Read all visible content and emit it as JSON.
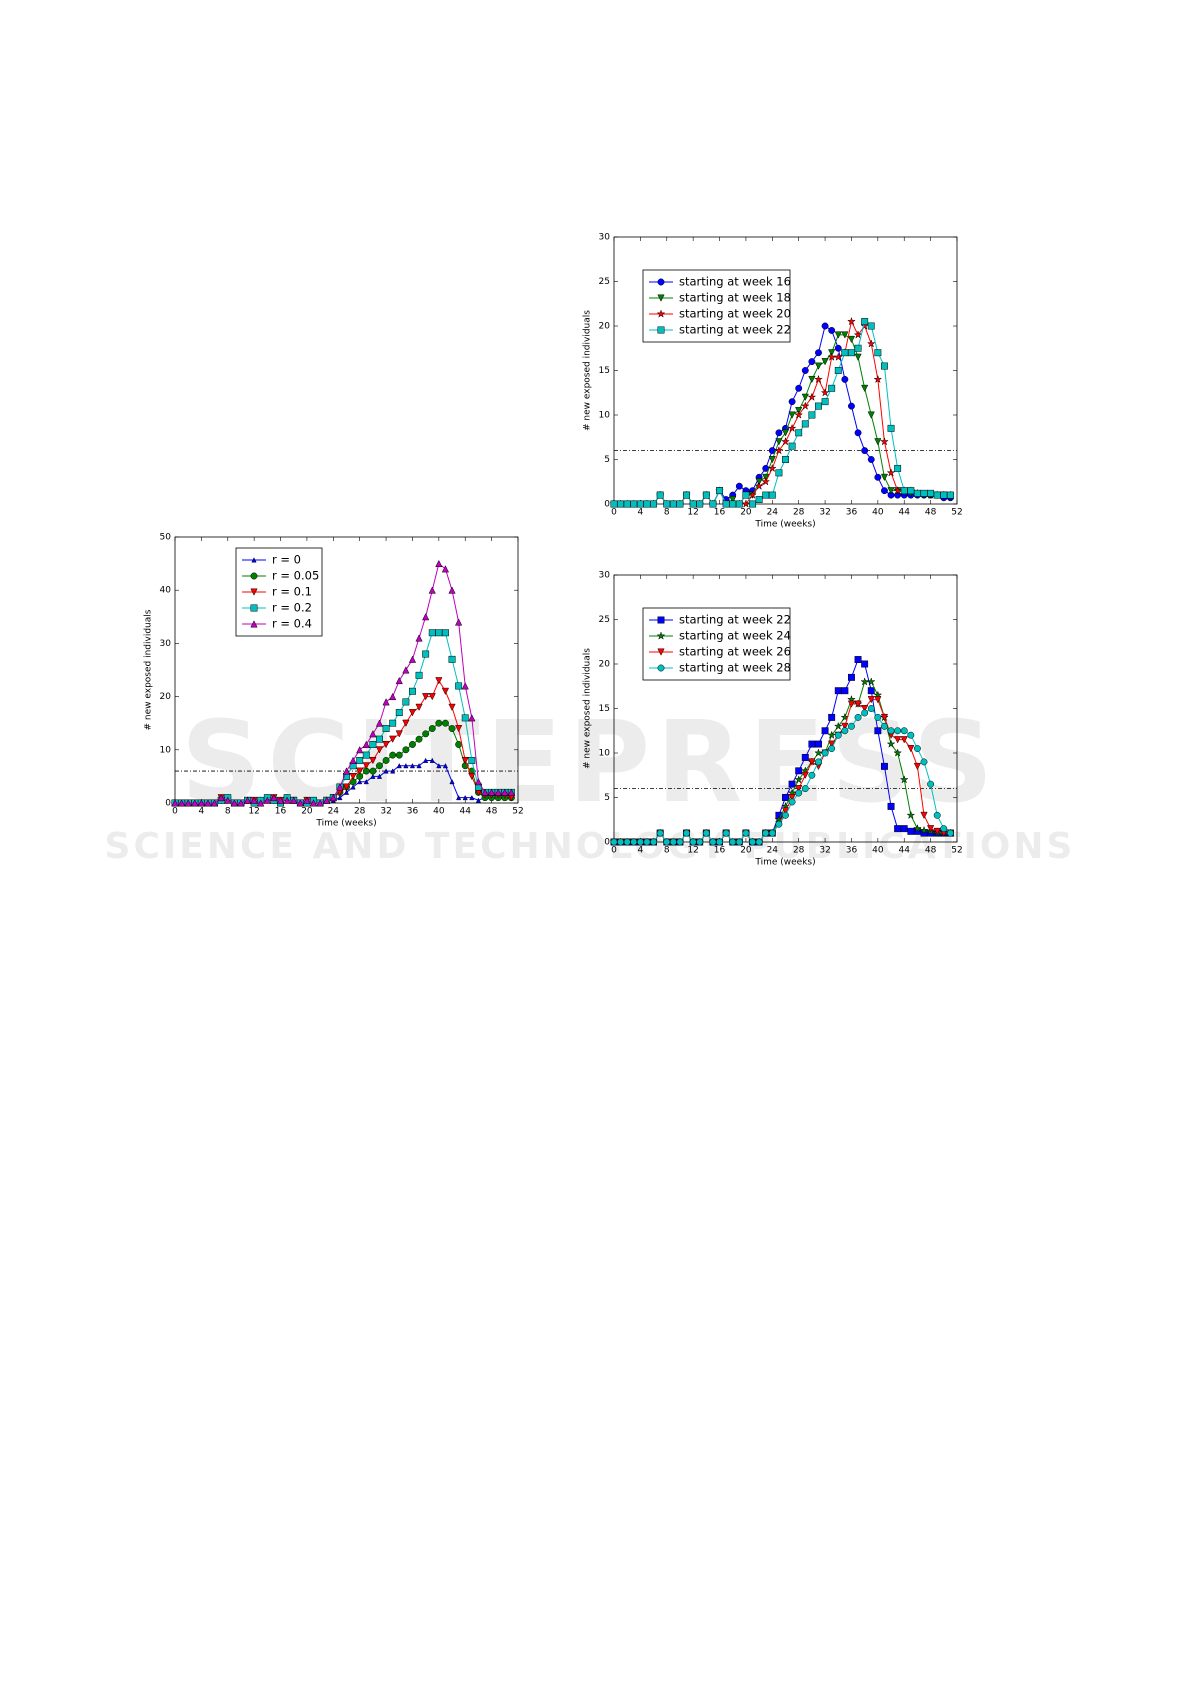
{
  "watermark": {
    "title": "SCITEPRESS",
    "subtitle": "SCIENCE AND TECHNOLOGY PUBLICATIONS"
  },
  "chart_data": [
    {
      "type": "line",
      "xlabel": "Time (weeks)",
      "ylabel": "# new exposed individuals",
      "legend": "upper center",
      "xlim": [
        0,
        52
      ],
      "xticks": [
        0,
        4,
        8,
        12,
        16,
        20,
        24,
        28,
        32,
        36,
        40,
        44,
        48,
        52
      ],
      "ylim": [
        0,
        50
      ],
      "yticks": [
        0,
        10,
        20,
        30,
        40,
        50
      ],
      "reference_line": 6,
      "x": [
        0,
        1,
        2,
        3,
        4,
        5,
        6,
        7,
        8,
        9,
        10,
        11,
        12,
        13,
        14,
        15,
        16,
        17,
        18,
        19,
        20,
        21,
        22,
        23,
        24,
        25,
        26,
        27,
        28,
        29,
        30,
        31,
        32,
        33,
        34,
        35,
        36,
        37,
        38,
        39,
        40,
        41,
        42,
        43,
        44,
        45,
        46,
        47,
        48,
        49,
        50,
        51
      ],
      "series": [
        {
          "name": "r = 0",
          "color": "#0000ff",
          "marker": "triangle-up-small",
          "values": [
            0,
            0,
            0,
            0,
            0,
            0,
            0,
            1,
            0.5,
            0,
            0,
            0.5,
            0.5,
            0,
            0.5,
            1,
            0.5,
            0.5,
            0.5,
            0,
            0.5,
            0,
            0,
            0.5,
            0.5,
            1,
            2,
            3,
            4,
            4,
            5,
            5,
            6,
            6,
            7,
            7,
            7,
            7,
            8,
            8,
            7,
            7,
            4,
            1,
            1,
            1,
            0.5,
            1,
            1,
            1,
            1,
            1
          ]
        },
        {
          "name": "r = 0.05",
          "color": "#008000",
          "marker": "circle",
          "values": [
            0,
            0,
            0,
            0,
            0,
            0,
            0,
            0.5,
            1,
            0,
            0,
            0.5,
            0,
            0.5,
            1,
            0.5,
            0,
            1,
            0.5,
            0,
            0,
            0.5,
            0,
            0.5,
            1,
            2,
            3,
            4,
            5,
            6,
            6,
            7,
            8,
            9,
            9,
            10,
            11,
            12,
            13,
            14,
            15,
            15,
            14,
            11,
            7,
            6,
            2,
            1,
            1,
            1,
            1,
            1
          ]
        },
        {
          "name": "r = 0.1",
          "color": "#ff0000",
          "marker": "triangle-down",
          "values": [
            0,
            0,
            0,
            0,
            0,
            0,
            0,
            1,
            0.5,
            0,
            0,
            0.5,
            0.5,
            0,
            0.5,
            1,
            0.5,
            0.5,
            0.5,
            0,
            0.5,
            0,
            0,
            0.5,
            1,
            2,
            3,
            5,
            6,
            7,
            8,
            10,
            11,
            12,
            13,
            15,
            17,
            18,
            20,
            20,
            23,
            21,
            18,
            14,
            8,
            5,
            2,
            1.5,
            1.5,
            1.5,
            1.5,
            1
          ]
        },
        {
          "name": "r = 0.2",
          "color": "#00bfbf",
          "marker": "square",
          "values": [
            0,
            0,
            0,
            0,
            0,
            0,
            0,
            0.5,
            1,
            0,
            0,
            0.5,
            0,
            0.5,
            1,
            0.5,
            0,
            1,
            0.5,
            0,
            0,
            0.5,
            0,
            0.5,
            1,
            3,
            5,
            7,
            8,
            9,
            11,
            12,
            14,
            15,
            17,
            19,
            21,
            24,
            28,
            32,
            32,
            32,
            27,
            22,
            16,
            8,
            3,
            2,
            2,
            2,
            2,
            2
          ]
        },
        {
          "name": "r = 0.4",
          "color": "#bf00bf",
          "marker": "triangle-up",
          "values": [
            0,
            0,
            0,
            0,
            0,
            0,
            0,
            1,
            0.5,
            0,
            0,
            0.5,
            0.5,
            0,
            0.5,
            1,
            0.5,
            0.5,
            0.5,
            0,
            0.5,
            0,
            0,
            0.5,
            1,
            3,
            6,
            8,
            10,
            11,
            13,
            15,
            19,
            20,
            23,
            25,
            27,
            31,
            35,
            40,
            45,
            44,
            40,
            34,
            22,
            16,
            4,
            2,
            2,
            2,
            2,
            2
          ]
        }
      ]
    },
    {
      "type": "line",
      "xlabel": "Time (weeks)",
      "ylabel": "# new exposed individuals",
      "legend": "upper left",
      "xlim": [
        0,
        52
      ],
      "xticks": [
        0,
        4,
        8,
        12,
        16,
        20,
        24,
        28,
        32,
        36,
        40,
        44,
        48,
        52
      ],
      "ylim": [
        0,
        30
      ],
      "yticks": [
        0,
        5,
        10,
        15,
        20,
        25,
        30
      ],
      "reference_line": 6,
      "x": [
        0,
        1,
        2,
        3,
        4,
        5,
        6,
        7,
        8,
        9,
        10,
        11,
        12,
        13,
        14,
        15,
        16,
        17,
        18,
        19,
        20,
        21,
        22,
        23,
        24,
        25,
        26,
        27,
        28,
        29,
        30,
        31,
        32,
        33,
        34,
        35,
        36,
        37,
        38,
        39,
        40,
        41,
        42,
        43,
        44,
        45,
        46,
        47,
        48,
        49,
        50,
        51
      ],
      "series": [
        {
          "name": "starting at week 16",
          "color": "#0000ff",
          "marker": "circle",
          "values": [
            0,
            0,
            0,
            0,
            0,
            0,
            0,
            1,
            0,
            0,
            0,
            1,
            0,
            0,
            1,
            0,
            1.5,
            0.5,
            1,
            2,
            1.5,
            1.5,
            3,
            4,
            6,
            8,
            8.5,
            11.5,
            13,
            15,
            16,
            17,
            20,
            19.5,
            17.5,
            14,
            11,
            8,
            6,
            5,
            3,
            1.5,
            1,
            1,
            1,
            1,
            1,
            1,
            1,
            1,
            0.7,
            0.7
          ]
        },
        {
          "name": "starting at week 18",
          "color": "#008000",
          "marker": "triangle-down",
          "values": [
            0,
            0,
            0,
            0,
            0,
            0,
            0,
            1,
            0,
            0,
            0,
            1,
            0,
            0,
            1,
            0,
            1.5,
            0,
            0.5,
            0,
            1,
            1,
            2.5,
            3,
            5,
            7,
            8,
            10,
            10.5,
            12,
            14,
            15.5,
            16,
            17,
            19,
            19,
            18.5,
            16.5,
            13,
            10,
            7,
            3,
            1.5,
            1.5,
            1.3,
            1.2,
            1.1,
            1,
            1,
            1,
            1,
            0.8
          ]
        },
        {
          "name": "starting at week 20",
          "color": "#ff0000",
          "marker": "star",
          "values": [
            0,
            0,
            0,
            0,
            0,
            0,
            0,
            1,
            0,
            0,
            0,
            1,
            0,
            0,
            1,
            0,
            1.5,
            0,
            0,
            0,
            0,
            1,
            2,
            2.5,
            4,
            6,
            7,
            8.5,
            10,
            11,
            12,
            14,
            12.5,
            16.5,
            16.5,
            17,
            20.5,
            19,
            20,
            18,
            14,
            7,
            3.5,
            1.5,
            1.5,
            1.5,
            1.2,
            1.1,
            1,
            1,
            1,
            1
          ]
        },
        {
          "name": "starting at week 22",
          "color": "#00bfbf",
          "marker": "square",
          "values": [
            0,
            0,
            0,
            0,
            0,
            0,
            0,
            1,
            0,
            0,
            0,
            1,
            0,
            0,
            1,
            0,
            1.5,
            0,
            0,
            0,
            1,
            0,
            0.5,
            1,
            1,
            3.5,
            5,
            6.5,
            8,
            9,
            10,
            11,
            11.5,
            13,
            15,
            17,
            17,
            17.5,
            20.5,
            20,
            17,
            15.5,
            8.5,
            4,
            1.5,
            1.5,
            1.2,
            1.2,
            1.2,
            1,
            1,
            1
          ]
        }
      ]
    },
    {
      "type": "line",
      "xlabel": "Time (weeks)",
      "ylabel": "# new exposed individuals",
      "legend": "upper left",
      "xlim": [
        0,
        52
      ],
      "xticks": [
        0,
        4,
        8,
        12,
        16,
        20,
        24,
        28,
        32,
        36,
        40,
        44,
        48,
        52
      ],
      "ylim": [
        0,
        30
      ],
      "yticks": [
        0,
        5,
        10,
        15,
        20,
        25,
        30
      ],
      "reference_line": 6,
      "x": [
        0,
        1,
        2,
        3,
        4,
        5,
        6,
        7,
        8,
        9,
        10,
        11,
        12,
        13,
        14,
        15,
        16,
        17,
        18,
        19,
        20,
        21,
        22,
        23,
        24,
        25,
        26,
        27,
        28,
        29,
        30,
        31,
        32,
        33,
        34,
        35,
        36,
        37,
        38,
        39,
        40,
        41,
        42,
        43,
        44,
        45,
        46,
        47,
        48,
        49,
        50,
        51
      ],
      "series": [
        {
          "name": "starting at week 22",
          "color": "#0000ff",
          "marker": "square",
          "values": [
            0,
            0,
            0,
            0,
            0,
            0,
            0,
            1,
            0,
            0,
            0,
            1,
            0,
            0,
            1,
            0,
            0,
            1,
            0,
            0,
            1,
            0,
            0,
            1,
            1,
            3,
            5,
            6.5,
            8,
            9.5,
            11,
            11,
            12.5,
            14,
            17,
            17,
            18.5,
            20.5,
            20,
            17,
            12.5,
            8.5,
            4,
            1.5,
            1.5,
            1.2,
            1.2,
            1,
            1,
            1,
            1,
            1
          ]
        },
        {
          "name": "starting at week 24",
          "color": "#008000",
          "marker": "star",
          "values": [
            0,
            0,
            0,
            0,
            0,
            0,
            0,
            1,
            0,
            0,
            0,
            1,
            0,
            0,
            1,
            0,
            0,
            1,
            0,
            0,
            1,
            0,
            0,
            1,
            1,
            2.5,
            4,
            5.5,
            7,
            8,
            9,
            10,
            10,
            12,
            13,
            14,
            16,
            15.5,
            18,
            18,
            16.5,
            14,
            11,
            10,
            7,
            3,
            1.5,
            1.3,
            1.2,
            1,
            1,
            1
          ]
        },
        {
          "name": "starting at week 26",
          "color": "#ff0000",
          "marker": "triangle-down",
          "values": [
            0,
            0,
            0,
            0,
            0,
            0,
            0,
            1,
            0,
            0,
            0,
            1,
            0,
            0,
            1,
            0,
            0,
            1,
            0,
            0,
            1,
            0,
            0,
            1,
            1,
            2,
            3.5,
            5,
            6,
            7.5,
            9,
            8.5,
            10,
            11,
            12,
            13,
            15.5,
            15.5,
            15,
            16,
            16,
            14,
            12,
            11.5,
            11.5,
            10.5,
            8.5,
            3,
            1.5,
            1.2,
            1,
            1
          ]
        },
        {
          "name": "starting at week 28",
          "color": "#00bfbf",
          "marker": "circle",
          "values": [
            0,
            0,
            0,
            0,
            0,
            0,
            0,
            1,
            0,
            0,
            0,
            1,
            0,
            0,
            1,
            0,
            0,
            1,
            0,
            0,
            1,
            0,
            0,
            1,
            1,
            2,
            3,
            4.5,
            5.5,
            6,
            7.5,
            9,
            10,
            10.5,
            12,
            12.5,
            13,
            14,
            14.5,
            15,
            14,
            13,
            12.5,
            12.5,
            12.5,
            12,
            10.5,
            9,
            6.5,
            3,
            1.5,
            1
          ]
        }
      ]
    }
  ]
}
